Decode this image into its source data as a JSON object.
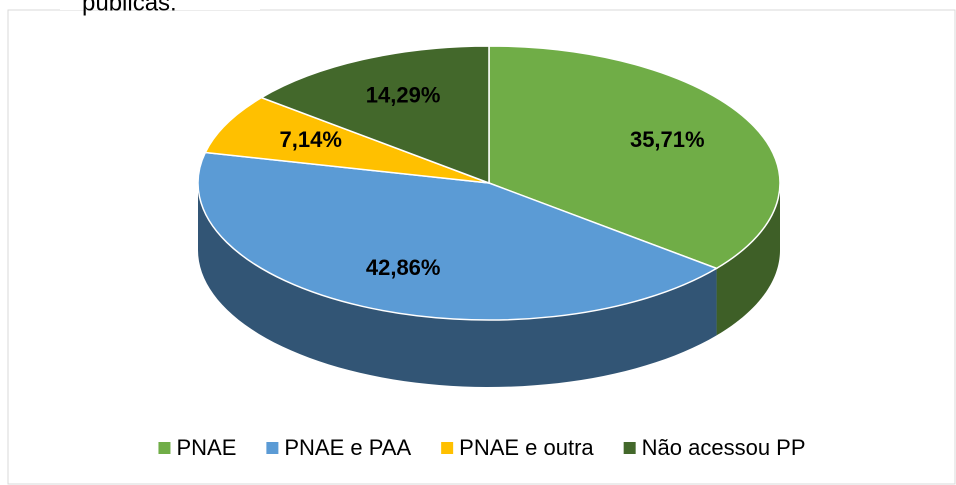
{
  "caption": "públicas:",
  "chart_data": {
    "type": "pie3d",
    "categories": [
      "PNAE",
      "PNAE e PAA",
      "PNAE e outra",
      "Não acessou PP"
    ],
    "values": [
      35.71,
      42.86,
      7.14,
      14.29
    ],
    "value_labels": [
      "35,71%",
      "42,86%",
      "7,14%",
      "14,29%"
    ],
    "colors": [
      "#70ad47",
      "#5b9bd5",
      "#ffc000",
      "#43682b"
    ],
    "legend": "bottom"
  }
}
